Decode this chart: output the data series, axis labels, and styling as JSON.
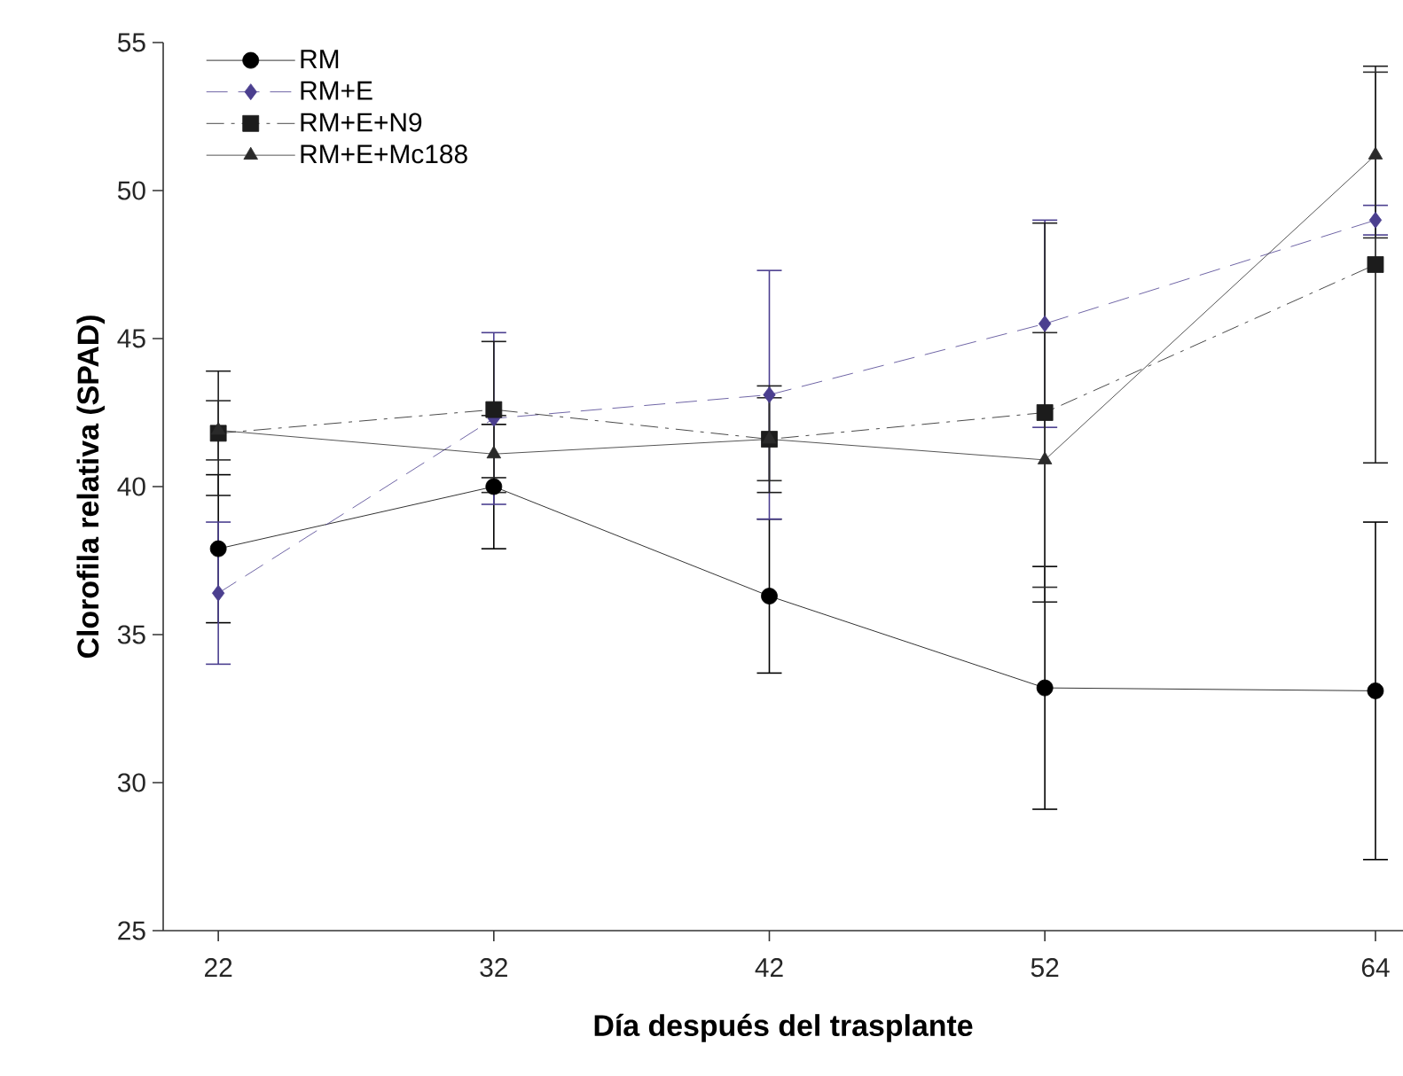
{
  "chart_data": {
    "type": "line",
    "xlabel": "Día después del trasplante",
    "ylabel": "Clorofila relativa (SPAD)",
    "x": [
      22,
      32,
      42,
      52,
      64
    ],
    "xlim": [
      20,
      65
    ],
    "xticks": [
      22,
      32,
      42,
      52,
      64
    ],
    "ylim": [
      25,
      55
    ],
    "yticks": [
      25,
      30,
      35,
      40,
      45,
      50,
      55
    ],
    "grid": false,
    "legend": "top left",
    "series": [
      {
        "name": "RM",
        "color": "#000000",
        "marker": "circle",
        "line_style": "solid",
        "values": [
          37.9,
          40.0,
          36.3,
          33.2,
          33.1
        ],
        "errors": [
          2.5,
          2.1,
          2.6,
          4.1,
          5.7
        ]
      },
      {
        "name": "RM+E",
        "color": "#4b3f8f",
        "marker": "diamond",
        "line_style": "dashed",
        "values": [
          36.4,
          42.3,
          43.1,
          45.5,
          49.0
        ],
        "errors": [
          2.4,
          2.9,
          4.2,
          3.5,
          0.5
        ]
      },
      {
        "name": "RM+E+N9",
        "color": "#1c1c1c",
        "marker": "square",
        "line_style": "dashdot",
        "values": [
          41.8,
          42.6,
          41.6,
          42.5,
          47.5
        ],
        "errors": [
          2.1,
          2.3,
          1.8,
          6.4,
          6.7
        ]
      },
      {
        "name": "RM+E+Mc188",
        "color": "#2a2a2a",
        "marker": "triangle",
        "line_style": "solid",
        "values": [
          41.9,
          41.1,
          41.6,
          40.9,
          51.2
        ],
        "errors": [
          1.0,
          1.3,
          1.4,
          4.3,
          2.8
        ]
      }
    ]
  }
}
